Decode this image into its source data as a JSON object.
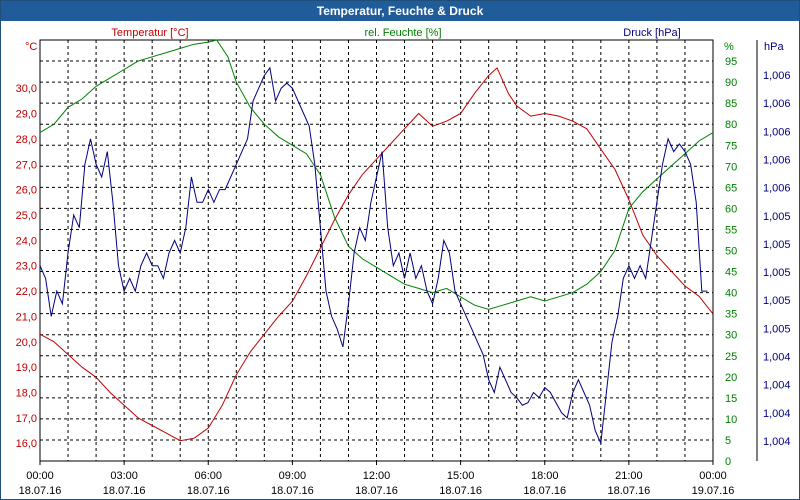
{
  "window": {
    "title": "Temperatur, Feuchte & Druck"
  },
  "chart_data": {
    "type": "line",
    "title": "Temperatur, Feuchte & Druck",
    "grid": true,
    "x_ticks": [
      {
        "time": "00:00",
        "date": "18.07.16"
      },
      {
        "time": "03:00",
        "date": "18.07.16"
      },
      {
        "time": "06:00",
        "date": "18.07.16"
      },
      {
        "time": "09:00",
        "date": "18.07.16"
      },
      {
        "time": "12:00",
        "date": "18.07.16"
      },
      {
        "time": "15:00",
        "date": "18.07.16"
      },
      {
        "time": "18:00",
        "date": "18.07.16"
      },
      {
        "time": "21:00",
        "date": "18.07.16"
      },
      {
        "time": "00:00",
        "date": "19.07.16"
      }
    ],
    "axes": {
      "temperature": {
        "label": "Temperatur [°C]",
        "unit": "°C",
        "color": "#c00000",
        "range": [
          15.3,
          31.9
        ],
        "ticks": [
          "16,0",
          "17,0",
          "18,0",
          "19,0",
          "20,0",
          "21,0",
          "22,0",
          "23,0",
          "24,0",
          "25,0",
          "26,0",
          "27,0",
          "28,0",
          "29,0",
          "30,0"
        ]
      },
      "humidity": {
        "label": "rel. Feuchte [%]",
        "unit": "%",
        "color": "#008000",
        "range": [
          0,
          100
        ],
        "ticks": [
          "0",
          "5",
          "10",
          "15",
          "20",
          "25",
          "30",
          "35",
          "40",
          "45",
          "50",
          "55",
          "60",
          "65",
          "70",
          "75",
          "80",
          "85",
          "90",
          "95"
        ]
      },
      "pressure": {
        "label": "Druck [hPa]",
        "unit": "hPa",
        "color": "#000080",
        "ticks": [
          "1,004",
          "1,004",
          "1,004",
          "1,004",
          "1,005",
          "1,005",
          "1,005",
          "1,005",
          "1,005",
          "1,006",
          "1,006",
          "1,006",
          "1,006",
          "1,006"
        ]
      }
    },
    "series": [
      {
        "name": "Temperatur [°C]",
        "axis": "temperature",
        "color": "#c00000",
        "points": [
          [
            0,
            20.3
          ],
          [
            0.5,
            20.0
          ],
          [
            1,
            19.5
          ],
          [
            1.5,
            19.0
          ],
          [
            2,
            18.6
          ],
          [
            2.5,
            18.0
          ],
          [
            3,
            17.5
          ],
          [
            3.5,
            17.0
          ],
          [
            4,
            16.7
          ],
          [
            4.5,
            16.4
          ],
          [
            5,
            16.1
          ],
          [
            5.5,
            16.2
          ],
          [
            6,
            16.6
          ],
          [
            6.5,
            17.5
          ],
          [
            7,
            18.7
          ],
          [
            7.5,
            19.6
          ],
          [
            8,
            20.3
          ],
          [
            8.5,
            21.0
          ],
          [
            9,
            21.6
          ],
          [
            9.5,
            22.6
          ],
          [
            10,
            23.7
          ],
          [
            10.5,
            24.8
          ],
          [
            11,
            25.8
          ],
          [
            11.5,
            26.6
          ],
          [
            12,
            27.2
          ],
          [
            12.5,
            27.8
          ],
          [
            13,
            28.4
          ],
          [
            13.5,
            29.0
          ],
          [
            14,
            28.5
          ],
          [
            14.5,
            28.7
          ],
          [
            15,
            29.0
          ],
          [
            15.5,
            29.8
          ],
          [
            16,
            30.5
          ],
          [
            16.3,
            30.8
          ],
          [
            16.7,
            29.8
          ],
          [
            17,
            29.3
          ],
          [
            17.5,
            28.9
          ],
          [
            18,
            29.0
          ],
          [
            18.5,
            28.9
          ],
          [
            19,
            28.7
          ],
          [
            19.5,
            28.4
          ],
          [
            20,
            27.6
          ],
          [
            20.5,
            26.8
          ],
          [
            21,
            25.6
          ],
          [
            21.5,
            24.2
          ],
          [
            22,
            23.4
          ],
          [
            22.5,
            22.8
          ],
          [
            23,
            22.2
          ],
          [
            23.5,
            21.8
          ],
          [
            24,
            21.1
          ]
        ]
      },
      {
        "name": "rel. Feuchte [%]",
        "axis": "humidity",
        "color": "#008000",
        "points": [
          [
            0,
            78
          ],
          [
            0.5,
            80
          ],
          [
            1,
            84
          ],
          [
            1.5,
            86
          ],
          [
            2,
            89
          ],
          [
            2.5,
            91
          ],
          [
            3,
            93
          ],
          [
            3.5,
            95
          ],
          [
            4,
            96
          ],
          [
            4.5,
            97
          ],
          [
            5,
            98
          ],
          [
            5.5,
            99
          ],
          [
            6,
            99.5
          ],
          [
            6.3,
            100
          ],
          [
            6.7,
            96
          ],
          [
            7,
            90
          ],
          [
            7.5,
            84
          ],
          [
            8,
            80
          ],
          [
            8.5,
            77
          ],
          [
            9,
            75
          ],
          [
            9.5,
            73
          ],
          [
            10,
            68
          ],
          [
            10.5,
            58
          ],
          [
            11,
            51
          ],
          [
            11.5,
            48
          ],
          [
            12,
            46
          ],
          [
            12.5,
            44
          ],
          [
            13,
            42
          ],
          [
            13.5,
            41
          ],
          [
            14,
            40
          ],
          [
            14.5,
            41
          ],
          [
            15,
            39
          ],
          [
            15.5,
            37
          ],
          [
            16,
            36
          ],
          [
            16.5,
            37
          ],
          [
            17,
            38
          ],
          [
            17.5,
            39
          ],
          [
            18,
            38
          ],
          [
            18.5,
            39
          ],
          [
            19,
            40
          ],
          [
            19.5,
            42
          ],
          [
            20,
            45
          ],
          [
            20.5,
            50
          ],
          [
            21,
            60
          ],
          [
            21.5,
            64
          ],
          [
            22,
            67
          ],
          [
            22.5,
            70
          ],
          [
            23,
            73
          ],
          [
            23.5,
            76
          ],
          [
            24,
            78
          ]
        ]
      },
      {
        "name": "Druck [hPa]",
        "axis": "pressure",
        "color": "#000080",
        "points": [
          [
            0,
            23.0
          ],
          [
            0.2,
            22.5
          ],
          [
            0.4,
            21.0
          ],
          [
            0.6,
            22.0
          ],
          [
            0.8,
            21.5
          ],
          [
            1,
            23.5
          ],
          [
            1.2,
            25.0
          ],
          [
            1.4,
            24.5
          ],
          [
            1.6,
            27.0
          ],
          [
            1.8,
            28.0
          ],
          [
            2,
            27.0
          ],
          [
            2.2,
            26.5
          ],
          [
            2.4,
            27.5
          ],
          [
            2.6,
            25.5
          ],
          [
            2.8,
            23.0
          ],
          [
            3,
            22.0
          ],
          [
            3.2,
            22.5
          ],
          [
            3.4,
            22.0
          ],
          [
            3.6,
            23.0
          ],
          [
            3.8,
            23.5
          ],
          [
            4,
            23.0
          ],
          [
            4.2,
            23.0
          ],
          [
            4.4,
            22.5
          ],
          [
            4.6,
            23.5
          ],
          [
            4.8,
            24.0
          ],
          [
            5,
            23.5
          ],
          [
            5.2,
            24.5
          ],
          [
            5.4,
            26.5
          ],
          [
            5.6,
            25.5
          ],
          [
            5.8,
            25.5
          ],
          [
            6,
            26.0
          ],
          [
            6.2,
            25.5
          ],
          [
            6.4,
            26.0
          ],
          [
            6.6,
            26.0
          ],
          [
            6.8,
            26.5
          ],
          [
            7,
            27.0
          ],
          [
            7.2,
            27.5
          ],
          [
            7.4,
            28.0
          ],
          [
            7.6,
            29.5
          ],
          [
            7.8,
            30.0
          ],
          [
            8,
            30.5
          ],
          [
            8.2,
            30.8
          ],
          [
            8.4,
            29.5
          ],
          [
            8.6,
            30.0
          ],
          [
            8.8,
            30.2
          ],
          [
            9,
            30.0
          ],
          [
            9.2,
            29.5
          ],
          [
            9.4,
            29.0
          ],
          [
            9.6,
            28.5
          ],
          [
            9.8,
            27.0
          ],
          [
            10,
            24.5
          ],
          [
            10.2,
            22.0
          ],
          [
            10.4,
            21.0
          ],
          [
            10.6,
            20.5
          ],
          [
            10.8,
            19.8
          ],
          [
            11,
            21.5
          ],
          [
            11.2,
            23.5
          ],
          [
            11.4,
            24.5
          ],
          [
            11.6,
            24.0
          ],
          [
            11.8,
            25.5
          ],
          [
            12,
            26.5
          ],
          [
            12.2,
            27.5
          ],
          [
            12.4,
            24.5
          ],
          [
            12.6,
            23.0
          ],
          [
            12.8,
            23.5
          ],
          [
            13,
            22.5
          ],
          [
            13.2,
            23.5
          ],
          [
            13.4,
            22.5
          ],
          [
            13.6,
            23.0
          ],
          [
            13.8,
            22.0
          ],
          [
            14,
            21.5
          ],
          [
            14.2,
            22.5
          ],
          [
            14.4,
            24.0
          ],
          [
            14.6,
            23.5
          ],
          [
            14.8,
            22.0
          ],
          [
            15,
            21.5
          ],
          [
            15.2,
            21.0
          ],
          [
            15.4,
            20.5
          ],
          [
            15.6,
            20.0
          ],
          [
            15.8,
            19.5
          ],
          [
            16,
            18.5
          ],
          [
            16.2,
            18.0
          ],
          [
            16.4,
            19.0
          ],
          [
            16.6,
            18.5
          ],
          [
            16.8,
            18.0
          ],
          [
            17,
            17.8
          ],
          [
            17.2,
            17.5
          ],
          [
            17.4,
            17.6
          ],
          [
            17.6,
            18.0
          ],
          [
            17.8,
            17.8
          ],
          [
            18,
            18.2
          ],
          [
            18.2,
            18.0
          ],
          [
            18.4,
            17.6
          ],
          [
            18.6,
            17.2
          ],
          [
            18.8,
            17.0
          ],
          [
            19,
            18.0
          ],
          [
            19.2,
            18.5
          ],
          [
            19.4,
            18.0
          ],
          [
            19.6,
            17.5
          ],
          [
            19.8,
            16.5
          ],
          [
            20,
            16.0
          ],
          [
            20.2,
            18.0
          ],
          [
            20.4,
            20.0
          ],
          [
            20.6,
            21.0
          ],
          [
            20.8,
            22.5
          ],
          [
            21,
            23.0
          ],
          [
            21.2,
            22.5
          ],
          [
            21.4,
            23.0
          ],
          [
            21.6,
            22.5
          ],
          [
            21.8,
            24.0
          ],
          [
            22,
            25.5
          ],
          [
            22.2,
            27.0
          ],
          [
            22.4,
            28.0
          ],
          [
            22.6,
            27.5
          ],
          [
            22.8,
            27.8
          ],
          [
            23,
            27.5
          ],
          [
            23.2,
            27.0
          ],
          [
            23.4,
            25.5
          ],
          [
            23.6,
            22.0
          ],
          [
            23.8,
            22.0
          ]
        ]
      }
    ]
  }
}
